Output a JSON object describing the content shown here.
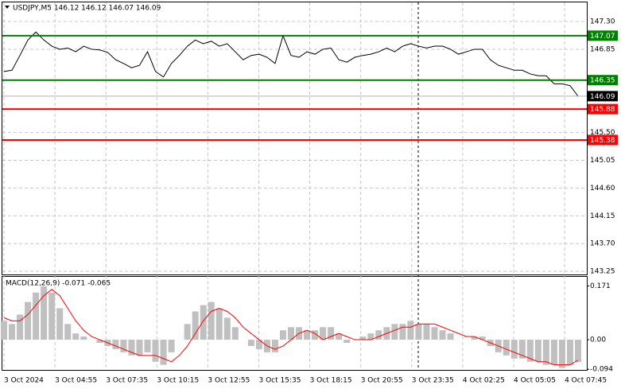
{
  "chart_data": [
    {
      "type": "line",
      "title": "USDJPY,M5  146.12 146.12 146.07 146.09",
      "x_labels": [
        "3 Oct 2024",
        "3 Oct 04:55",
        "3 Oct 07:35",
        "3 Oct 10:15",
        "3 Oct 12:55",
        "3 Oct 15:35",
        "3 Oct 18:15",
        "3 Oct 20:55",
        "3 Oct 23:35",
        "4 Oct 02:25",
        "4 Oct 05:05",
        "4 Oct 07:45"
      ],
      "values": [
        146.49,
        146.51,
        146.75,
        147.0,
        147.13,
        147.0,
        146.9,
        146.85,
        146.87,
        146.81,
        146.9,
        146.85,
        146.84,
        146.8,
        146.68,
        146.62,
        146.55,
        146.59,
        146.81,
        146.49,
        146.4,
        146.62,
        146.75,
        146.9,
        147.0,
        146.94,
        146.98,
        146.9,
        146.94,
        146.81,
        146.68,
        146.75,
        146.77,
        146.72,
        146.62,
        147.07,
        146.75,
        146.72,
        146.81,
        146.77,
        146.85,
        146.87,
        146.68,
        146.64,
        146.72,
        146.75,
        146.77,
        146.81,
        146.87,
        146.81,
        146.9,
        146.94,
        146.9,
        146.87,
        146.9,
        146.9,
        146.85,
        146.77,
        146.81,
        146.85,
        146.85,
        146.68,
        146.59,
        146.55,
        146.51,
        146.51,
        146.45,
        146.42,
        146.42,
        146.29,
        146.29,
        146.26,
        146.09
      ],
      "color": "#000000",
      "ylim": [
        143.2,
        147.61
      ],
      "yticks": [
        {
          "value": 147.3,
          "label": "147.30"
        },
        146.85,
        {
          "value": 145.5,
          "label": "145.50"
        },
        145.05,
        {
          "value": 144.6,
          "label": "144.60"
        },
        144.15,
        {
          "value": 143.7,
          "label": "143.70"
        },
        143.25
      ],
      "grid": true,
      "levels": [
        {
          "value": 147.07,
          "color": "#008000"
        },
        {
          "value": 146.35,
          "color": "#008000"
        },
        {
          "value": 145.88,
          "color": "#ff0000"
        },
        {
          "value": 145.38,
          "color": "#ff0000"
        }
      ],
      "current_price": 146.09
    },
    {
      "type": "macd",
      "title": "MACD(12,26,9) -0.071 -0.065",
      "histogram": {
        "color": "#c0c0c0",
        "values": [
          0.06,
          0.05,
          0.08,
          0.12,
          0.15,
          0.17,
          0.15,
          0.1,
          0.05,
          0.02,
          0.01,
          0.0,
          -0.01,
          -0.02,
          -0.03,
          -0.04,
          -0.05,
          -0.05,
          -0.04,
          -0.07,
          -0.08,
          -0.04,
          0.0,
          0.05,
          0.09,
          0.11,
          0.12,
          0.1,
          0.07,
          0.04,
          0.0,
          -0.02,
          -0.03,
          -0.04,
          -0.04,
          0.03,
          0.04,
          0.04,
          0.03,
          0.03,
          0.04,
          0.04,
          0.02,
          -0.01,
          0.0,
          0.01,
          0.02,
          0.03,
          0.04,
          0.05,
          0.05,
          0.06,
          0.05,
          0.05,
          0.04,
          0.03,
          0.02,
          0.0,
          0.0,
          0.01,
          0.01,
          -0.02,
          -0.04,
          -0.05,
          -0.06,
          -0.06,
          -0.07,
          -0.07,
          -0.08,
          -0.08,
          -0.09,
          -0.08,
          -0.071
        ]
      },
      "signal": {
        "color": "#ff0000",
        "values": [
          0.07,
          0.06,
          0.06,
          0.08,
          0.11,
          0.14,
          0.16,
          0.14,
          0.1,
          0.06,
          0.03,
          0.01,
          0.0,
          -0.01,
          -0.02,
          -0.03,
          -0.04,
          -0.05,
          -0.05,
          -0.05,
          -0.06,
          -0.07,
          -0.05,
          -0.02,
          0.02,
          0.06,
          0.09,
          0.1,
          0.09,
          0.07,
          0.04,
          0.02,
          0.0,
          -0.02,
          -0.03,
          -0.02,
          0.0,
          0.02,
          0.03,
          0.02,
          0.0,
          0.01,
          0.02,
          0.01,
          0.0,
          0.0,
          0.0,
          0.01,
          0.02,
          0.03,
          0.04,
          0.04,
          0.05,
          0.05,
          0.05,
          0.04,
          0.03,
          0.02,
          0.01,
          0.01,
          0.0,
          -0.01,
          -0.02,
          -0.03,
          -0.04,
          -0.05,
          -0.06,
          -0.07,
          -0.07,
          -0.08,
          -0.08,
          -0.08,
          -0.065
        ]
      },
      "ylim": [
        -0.096,
        0.2
      ],
      "yticks": [
        0.171,
        {
          "value": 0,
          "label": "0.00"
        },
        -0.094
      ]
    }
  ]
}
